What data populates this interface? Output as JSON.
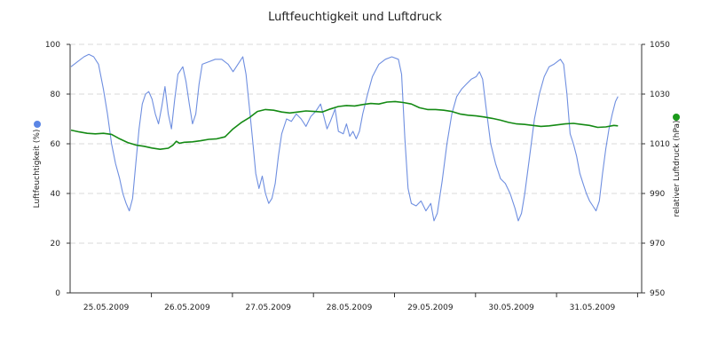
{
  "chart_data": {
    "type": "line",
    "title": "Luftfeuchtigkeit und Luftdruck",
    "x_tick_labels": [
      "25.05.2009",
      "26.05.2009",
      "27.05.2009",
      "28.05.2009",
      "29.05.2009",
      "30.05.2009",
      "31.05.2009"
    ],
    "x_range_days": [
      0,
      7
    ],
    "y_left": {
      "label": "Luftfeuchtigkeit (%)",
      "ticks": [
        0,
        20,
        40,
        60,
        80,
        100
      ],
      "range": [
        0,
        100
      ]
    },
    "y_right": {
      "label": "relativer Luftdruck (hPa)",
      "ticks": [
        950,
        970,
        990,
        1010,
        1030,
        1050
      ],
      "range": [
        950,
        1050
      ]
    },
    "grid": true,
    "series": [
      {
        "name": "Luftfeuchtigkeit (%)",
        "axis": "left",
        "color": "#6f8fe0",
        "marker_color": "#5b86e5",
        "points": [
          [
            0.0,
            91
          ],
          [
            0.08,
            93
          ],
          [
            0.16,
            95
          ],
          [
            0.22,
            96
          ],
          [
            0.28,
            95
          ],
          [
            0.34,
            92
          ],
          [
            0.4,
            82
          ],
          [
            0.45,
            72
          ],
          [
            0.5,
            60
          ],
          [
            0.55,
            52
          ],
          [
            0.6,
            46
          ],
          [
            0.64,
            40
          ],
          [
            0.68,
            36
          ],
          [
            0.72,
            33
          ],
          [
            0.76,
            38
          ],
          [
            0.8,
            52
          ],
          [
            0.84,
            66
          ],
          [
            0.88,
            76
          ],
          [
            0.92,
            80
          ],
          [
            0.96,
            81
          ],
          [
            1.0,
            78
          ],
          [
            1.04,
            72
          ],
          [
            1.08,
            68
          ],
          [
            1.12,
            75
          ],
          [
            1.16,
            83
          ],
          [
            1.2,
            72
          ],
          [
            1.24,
            66
          ],
          [
            1.28,
            78
          ],
          [
            1.32,
            88
          ],
          [
            1.38,
            91
          ],
          [
            1.42,
            85
          ],
          [
            1.46,
            76
          ],
          [
            1.5,
            68
          ],
          [
            1.54,
            72
          ],
          [
            1.58,
            84
          ],
          [
            1.62,
            92
          ],
          [
            1.7,
            93
          ],
          [
            1.78,
            94
          ],
          [
            1.86,
            94
          ],
          [
            1.94,
            92
          ],
          [
            2.0,
            89
          ],
          [
            2.06,
            92
          ],
          [
            2.12,
            95
          ],
          [
            2.16,
            88
          ],
          [
            2.2,
            75
          ],
          [
            2.24,
            62
          ],
          [
            2.28,
            48
          ],
          [
            2.32,
            42
          ],
          [
            2.36,
            47
          ],
          [
            2.4,
            40
          ],
          [
            2.44,
            36
          ],
          [
            2.48,
            38
          ],
          [
            2.52,
            44
          ],
          [
            2.56,
            55
          ],
          [
            2.6,
            64
          ],
          [
            2.66,
            70
          ],
          [
            2.72,
            69
          ],
          [
            2.78,
            72
          ],
          [
            2.84,
            70
          ],
          [
            2.9,
            67
          ],
          [
            2.96,
            71
          ],
          [
            3.02,
            73
          ],
          [
            3.08,
            76
          ],
          [
            3.12,
            71
          ],
          [
            3.16,
            66
          ],
          [
            3.2,
            69
          ],
          [
            3.26,
            74
          ],
          [
            3.3,
            65
          ],
          [
            3.36,
            64
          ],
          [
            3.4,
            68
          ],
          [
            3.44,
            63
          ],
          [
            3.48,
            65
          ],
          [
            3.52,
            62
          ],
          [
            3.56,
            65
          ],
          [
            3.6,
            72
          ],
          [
            3.66,
            80
          ],
          [
            3.72,
            87
          ],
          [
            3.8,
            92
          ],
          [
            3.88,
            94
          ],
          [
            3.96,
            95
          ],
          [
            4.04,
            94
          ],
          [
            4.08,
            88
          ],
          [
            4.12,
            62
          ],
          [
            4.16,
            42
          ],
          [
            4.2,
            36
          ],
          [
            4.26,
            35
          ],
          [
            4.32,
            37
          ],
          [
            4.38,
            33
          ],
          [
            4.44,
            36
          ],
          [
            4.48,
            29
          ],
          [
            4.52,
            32
          ],
          [
            4.58,
            45
          ],
          [
            4.64,
            60
          ],
          [
            4.7,
            72
          ],
          [
            4.76,
            79
          ],
          [
            4.82,
            82
          ],
          [
            4.88,
            84
          ],
          [
            4.94,
            86
          ],
          [
            5.0,
            87
          ],
          [
            5.04,
            89
          ],
          [
            5.08,
            86
          ],
          [
            5.12,
            75
          ],
          [
            5.18,
            60
          ],
          [
            5.24,
            52
          ],
          [
            5.3,
            46
          ],
          [
            5.36,
            44
          ],
          [
            5.42,
            40
          ],
          [
            5.48,
            34
          ],
          [
            5.52,
            29
          ],
          [
            5.56,
            32
          ],
          [
            5.6,
            40
          ],
          [
            5.66,
            55
          ],
          [
            5.72,
            70
          ],
          [
            5.78,
            80
          ],
          [
            5.84,
            87
          ],
          [
            5.9,
            91
          ],
          [
            5.96,
            92
          ],
          [
            6.0,
            93
          ],
          [
            6.04,
            94
          ],
          [
            6.08,
            92
          ],
          [
            6.12,
            80
          ],
          [
            6.16,
            64
          ],
          [
            6.2,
            60
          ],
          [
            6.24,
            55
          ],
          [
            6.28,
            48
          ],
          [
            6.32,
            44
          ],
          [
            6.36,
            40
          ],
          [
            6.4,
            37
          ],
          [
            6.44,
            35
          ],
          [
            6.48,
            33
          ],
          [
            6.52,
            37
          ],
          [
            6.56,
            48
          ],
          [
            6.6,
            58
          ],
          [
            6.64,
            66
          ],
          [
            6.68,
            72
          ],
          [
            6.72,
            77
          ],
          [
            6.75,
            79
          ]
        ]
      },
      {
        "name": "relativer Luftdruck (hPa)",
        "axis": "right",
        "color": "#148a14",
        "marker_color": "#1a9a1a",
        "points": [
          [
            0.0,
            1015.5
          ],
          [
            0.1,
            1014.8
          ],
          [
            0.2,
            1014.2
          ],
          [
            0.3,
            1014.0
          ],
          [
            0.4,
            1014.2
          ],
          [
            0.5,
            1013.8
          ],
          [
            0.6,
            1012.0
          ],
          [
            0.7,
            1010.5
          ],
          [
            0.8,
            1009.5
          ],
          [
            0.9,
            1009.0
          ],
          [
            1.0,
            1008.3
          ],
          [
            1.1,
            1007.8
          ],
          [
            1.2,
            1008.2
          ],
          [
            1.26,
            1009.5
          ],
          [
            1.3,
            1011.0
          ],
          [
            1.34,
            1010.2
          ],
          [
            1.4,
            1010.6
          ],
          [
            1.5,
            1010.8
          ],
          [
            1.6,
            1011.2
          ],
          [
            1.7,
            1011.8
          ],
          [
            1.8,
            1012.0
          ],
          [
            1.9,
            1012.8
          ],
          [
            2.0,
            1016.0
          ],
          [
            2.1,
            1018.5
          ],
          [
            2.2,
            1020.5
          ],
          [
            2.3,
            1023.0
          ],
          [
            2.4,
            1023.8
          ],
          [
            2.5,
            1023.5
          ],
          [
            2.6,
            1022.8
          ],
          [
            2.7,
            1022.4
          ],
          [
            2.8,
            1022.8
          ],
          [
            2.9,
            1023.2
          ],
          [
            3.0,
            1023.0
          ],
          [
            3.1,
            1022.8
          ],
          [
            3.2,
            1024.0
          ],
          [
            3.3,
            1025.0
          ],
          [
            3.4,
            1025.4
          ],
          [
            3.5,
            1025.2
          ],
          [
            3.6,
            1025.8
          ],
          [
            3.7,
            1026.2
          ],
          [
            3.8,
            1026.0
          ],
          [
            3.9,
            1026.8
          ],
          [
            4.0,
            1027.0
          ],
          [
            4.1,
            1026.6
          ],
          [
            4.2,
            1026.0
          ],
          [
            4.3,
            1024.5
          ],
          [
            4.4,
            1023.8
          ],
          [
            4.5,
            1023.8
          ],
          [
            4.6,
            1023.5
          ],
          [
            4.7,
            1023.0
          ],
          [
            4.8,
            1022.0
          ],
          [
            4.9,
            1021.5
          ],
          [
            5.0,
            1021.2
          ],
          [
            5.1,
            1020.8
          ],
          [
            5.2,
            1020.2
          ],
          [
            5.3,
            1019.5
          ],
          [
            5.4,
            1018.6
          ],
          [
            5.5,
            1018.0
          ],
          [
            5.6,
            1017.8
          ],
          [
            5.7,
            1017.4
          ],
          [
            5.8,
            1017.0
          ],
          [
            5.9,
            1017.2
          ],
          [
            6.0,
            1017.6
          ],
          [
            6.1,
            1018.0
          ],
          [
            6.2,
            1018.2
          ],
          [
            6.3,
            1017.8
          ],
          [
            6.4,
            1017.4
          ],
          [
            6.5,
            1016.6
          ],
          [
            6.6,
            1016.8
          ],
          [
            6.7,
            1017.4
          ],
          [
            6.75,
            1017.2
          ]
        ]
      }
    ]
  }
}
